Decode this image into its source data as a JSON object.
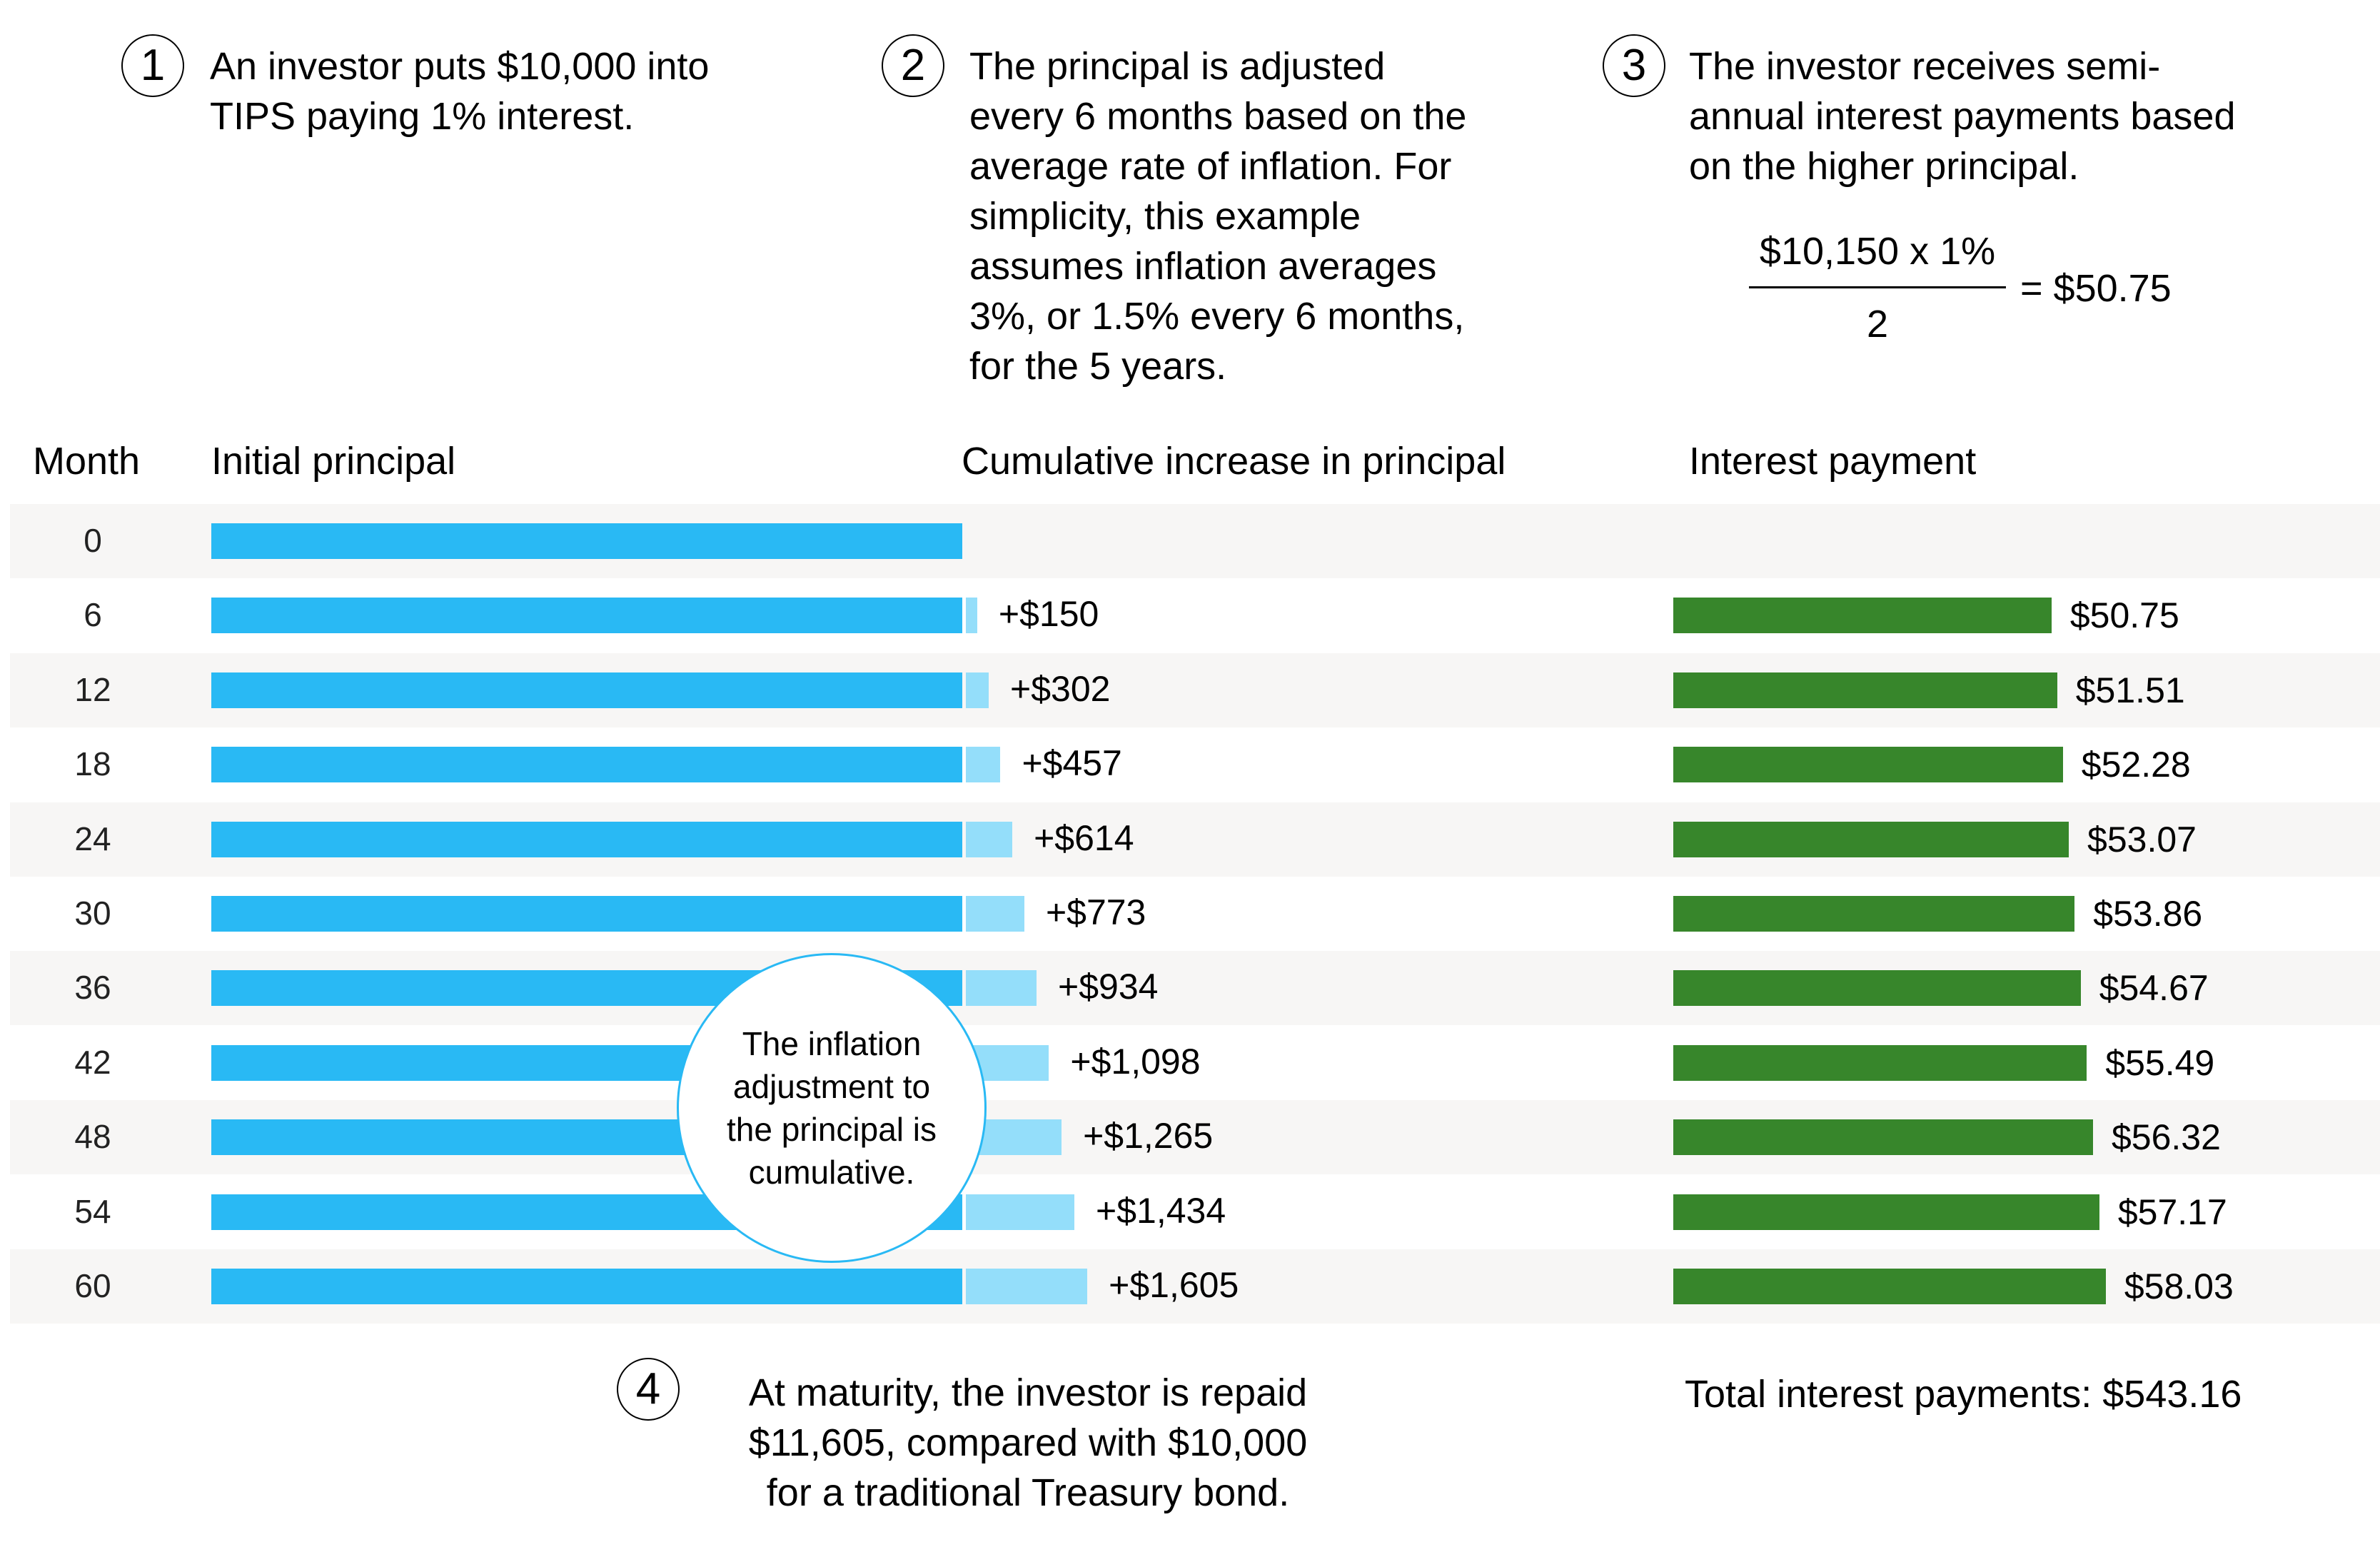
{
  "steps": [
    {
      "number": "1",
      "lines": [
        "An investor puts $10,000 into",
        "TIPS paying 1% interest."
      ]
    },
    {
      "number": "2",
      "lines": [
        "The principal is adjusted",
        "every 6 months based on the",
        "average rate of inflation. For",
        "simplicity, this example",
        "assumes inflation averages",
        "3%, or 1.5% every 6 months,",
        "for the 5 years."
      ]
    },
    {
      "number": "3",
      "lines": [
        "The investor receives semi-",
        "annual interest payments based",
        "on the higher principal."
      ]
    },
    {
      "number": "4",
      "lines": [
        "At maturity, the investor is repaid",
        "$11,605, compared with $10,000",
        "for a traditional Treasury bond."
      ]
    }
  ],
  "formula": {
    "numerator": "$10,150 x 1%",
    "denominator": "2",
    "result": "= $50.75"
  },
  "headers": {
    "month": "Month",
    "initial_principal": "Initial principal",
    "cumulative_increase": "Cumulative increase in principal",
    "interest_payment": "Interest payment"
  },
  "callout": {
    "lines": [
      "The inflation",
      "adjustment to",
      "the principal is",
      "cumulative."
    ]
  },
  "total": "Total interest payments: $543.16",
  "colors": {
    "principal": "#29b9f4",
    "increase": "#94defa",
    "interest": "#37862b",
    "band": "#f7f6f5"
  },
  "chart_data": {
    "type": "bar",
    "orientation": "horizontal",
    "title": "",
    "categories": [
      "0",
      "6",
      "12",
      "18",
      "24",
      "30",
      "36",
      "42",
      "48",
      "54",
      "60"
    ],
    "category_label": "Month",
    "series": [
      {
        "name": "Initial principal",
        "values": [
          10000,
          10000,
          10000,
          10000,
          10000,
          10000,
          10000,
          10000,
          10000,
          10000,
          10000
        ],
        "labels": [
          "",
          "",
          "",
          "",
          "",
          "",
          "",
          "",
          "",
          "",
          ""
        ]
      },
      {
        "name": "Cumulative increase in principal",
        "values": [
          0,
          150,
          302,
          457,
          614,
          773,
          934,
          1098,
          1265,
          1434,
          1605
        ],
        "labels": [
          "",
          "+$150",
          "+$302",
          "+$457",
          "+$614",
          "+$773",
          "+$934",
          "+$1,098",
          "+$1,265",
          "+$1,434",
          "+$1,605"
        ]
      },
      {
        "name": "Interest payment",
        "values": [
          null,
          50.75,
          51.51,
          52.28,
          53.07,
          53.86,
          54.67,
          55.49,
          56.32,
          57.17,
          58.03
        ],
        "labels": [
          "",
          "$50.75",
          "$51.51",
          "$52.28",
          "$53.07",
          "$53.86",
          "$54.67",
          "$55.49",
          "$56.32",
          "$57.17",
          "$58.03"
        ]
      }
    ],
    "total_interest": 543.16,
    "grid": false,
    "legend": "none"
  }
}
